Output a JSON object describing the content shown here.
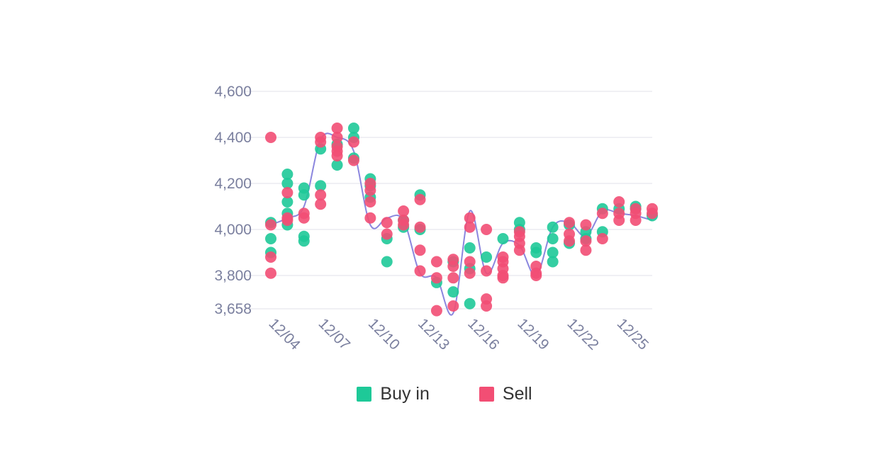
{
  "colors": {
    "buy": "#1ec998",
    "sell": "#f24e74",
    "line": "#8b86de",
    "grid": "#f0f0f4",
    "text": "#7a7f9e"
  },
  "legend": [
    {
      "key": "buy",
      "label": "Buy in",
      "color": "#1ec998"
    },
    {
      "key": "sell",
      "label": "Sell",
      "color": "#f24e74"
    }
  ],
  "chart_data": {
    "type": "scatter",
    "title": "",
    "xlabel": "",
    "ylabel": "",
    "ylim": [
      3658,
      4600
    ],
    "xlim": [
      "12/04",
      "12/27"
    ],
    "y_ticks": [
      3658,
      3800,
      4000,
      4200,
      4400,
      4600
    ],
    "y_tick_labels": [
      "3,658",
      "3,800",
      "4,000",
      "4,200",
      "4,400",
      "4,600"
    ],
    "x_ticks": [
      "12/04",
      "12/07",
      "12/10",
      "12/13",
      "12/16",
      "12/19",
      "12/22",
      "12/25"
    ],
    "grid": true,
    "legend_position": "bottom",
    "series": [
      {
        "name": "Buy in",
        "type": "scatter",
        "points": [
          [
            "12/04",
            4030
          ],
          [
            "12/04",
            3960
          ],
          [
            "12/04",
            3900
          ],
          [
            "12/05",
            4240
          ],
          [
            "12/05",
            4200
          ],
          [
            "12/05",
            4120
          ],
          [
            "12/05",
            4070
          ],
          [
            "12/05",
            4020
          ],
          [
            "12/06",
            4180
          ],
          [
            "12/06",
            4150
          ],
          [
            "12/06",
            3970
          ],
          [
            "12/06",
            3950
          ],
          [
            "12/07",
            4350
          ],
          [
            "12/07",
            4190
          ],
          [
            "12/08",
            4370
          ],
          [
            "12/08",
            4280
          ],
          [
            "12/09",
            4440
          ],
          [
            "12/09",
            4400
          ],
          [
            "12/09",
            4310
          ],
          [
            "12/10",
            4220
          ],
          [
            "12/10",
            4190
          ],
          [
            "12/10",
            4140
          ],
          [
            "12/11",
            3960
          ],
          [
            "12/11",
            3860
          ],
          [
            "12/12",
            4040
          ],
          [
            "12/12",
            4010
          ],
          [
            "12/13",
            4150
          ],
          [
            "12/13",
            4000
          ],
          [
            "12/14",
            3770
          ],
          [
            "12/15",
            3730
          ],
          [
            "12/15",
            3860
          ],
          [
            "12/16",
            3920
          ],
          [
            "12/16",
            3830
          ],
          [
            "12/16",
            3680
          ],
          [
            "12/17",
            3880
          ],
          [
            "12/18",
            3960
          ],
          [
            "12/19",
            4030
          ],
          [
            "12/19",
            4000
          ],
          [
            "12/20",
            3920
          ],
          [
            "12/20",
            3900
          ],
          [
            "12/21",
            4010
          ],
          [
            "12/21",
            3960
          ],
          [
            "12/21",
            3900
          ],
          [
            "12/21",
            3860
          ],
          [
            "12/22",
            4020
          ],
          [
            "12/22",
            3940
          ],
          [
            "12/23",
            3990
          ],
          [
            "12/23",
            3960
          ],
          [
            "12/24",
            4090
          ],
          [
            "12/24",
            3990
          ],
          [
            "12/25",
            4090
          ],
          [
            "12/26",
            4100
          ],
          [
            "12/26",
            4090
          ],
          [
            "12/27",
            4060
          ]
        ]
      },
      {
        "name": "Sell",
        "type": "scatter",
        "points": [
          [
            "12/04",
            4400
          ],
          [
            "12/04",
            4020
          ],
          [
            "12/04",
            3880
          ],
          [
            "12/04",
            3810
          ],
          [
            "12/05",
            4160
          ],
          [
            "12/05",
            4050
          ],
          [
            "12/05",
            4040
          ],
          [
            "12/06",
            4070
          ],
          [
            "12/06",
            4050
          ],
          [
            "12/07",
            4400
          ],
          [
            "12/07",
            4380
          ],
          [
            "12/07",
            4150
          ],
          [
            "12/07",
            4110
          ],
          [
            "12/08",
            4440
          ],
          [
            "12/08",
            4400
          ],
          [
            "12/08",
            4360
          ],
          [
            "12/08",
            4340
          ],
          [
            "12/08",
            4320
          ],
          [
            "12/09",
            4380
          ],
          [
            "12/09",
            4300
          ],
          [
            "12/10",
            4200
          ],
          [
            "12/10",
            4170
          ],
          [
            "12/10",
            4120
          ],
          [
            "12/10",
            4050
          ],
          [
            "12/11",
            4030
          ],
          [
            "12/11",
            3980
          ],
          [
            "12/12",
            4080
          ],
          [
            "12/12",
            4040
          ],
          [
            "12/12",
            4020
          ],
          [
            "12/13",
            4130
          ],
          [
            "12/13",
            4010
          ],
          [
            "12/13",
            3910
          ],
          [
            "12/13",
            3820
          ],
          [
            "12/14",
            3860
          ],
          [
            "12/14",
            3790
          ],
          [
            "12/14",
            3650
          ],
          [
            "12/15",
            3870
          ],
          [
            "12/15",
            3840
          ],
          [
            "12/15",
            3790
          ],
          [
            "12/15",
            3670
          ],
          [
            "12/16",
            4050
          ],
          [
            "12/16",
            4010
          ],
          [
            "12/16",
            3860
          ],
          [
            "12/16",
            3810
          ],
          [
            "12/17",
            4000
          ],
          [
            "12/17",
            3820
          ],
          [
            "12/17",
            3700
          ],
          [
            "12/17",
            3670
          ],
          [
            "12/18",
            3880
          ],
          [
            "12/18",
            3860
          ],
          [
            "12/18",
            3830
          ],
          [
            "12/18",
            3800
          ],
          [
            "12/18",
            3790
          ],
          [
            "12/19",
            3990
          ],
          [
            "12/19",
            3970
          ],
          [
            "12/19",
            3940
          ],
          [
            "12/19",
            3910
          ],
          [
            "12/20",
            3840
          ],
          [
            "12/20",
            3810
          ],
          [
            "12/20",
            3800
          ],
          [
            "12/22",
            4030
          ],
          [
            "12/22",
            3980
          ],
          [
            "12/22",
            3950
          ],
          [
            "12/23",
            4020
          ],
          [
            "12/23",
            3950
          ],
          [
            "12/23",
            3910
          ],
          [
            "12/24",
            4070
          ],
          [
            "12/24",
            3960
          ],
          [
            "12/25",
            4120
          ],
          [
            "12/25",
            4070
          ],
          [
            "12/25",
            4040
          ],
          [
            "12/26",
            4090
          ],
          [
            "12/26",
            4070
          ],
          [
            "12/26",
            4040
          ],
          [
            "12/27",
            4090
          ],
          [
            "12/27",
            4070
          ]
        ]
      },
      {
        "name": "",
        "type": "line",
        "points": [
          [
            "12/04",
            4020
          ],
          [
            "12/05",
            4050
          ],
          [
            "12/06",
            4100
          ],
          [
            "12/07",
            4390
          ],
          [
            "12/08",
            4400
          ],
          [
            "12/09",
            4340
          ],
          [
            "12/10",
            4020
          ],
          [
            "12/11",
            4050
          ],
          [
            "12/12",
            4040
          ],
          [
            "12/13",
            3810
          ],
          [
            "12/14",
            3790
          ],
          [
            "12/15",
            3640
          ],
          [
            "12/16",
            4080
          ],
          [
            "12/17",
            3810
          ],
          [
            "12/18",
            3940
          ],
          [
            "12/19",
            3930
          ],
          [
            "12/20",
            3800
          ],
          [
            "12/21",
            4010
          ],
          [
            "12/22",
            4030
          ],
          [
            "12/23",
            3970
          ],
          [
            "12/24",
            4080
          ],
          [
            "12/25",
            4070
          ],
          [
            "12/26",
            4060
          ],
          [
            "12/27",
            4040
          ]
        ]
      }
    ]
  }
}
